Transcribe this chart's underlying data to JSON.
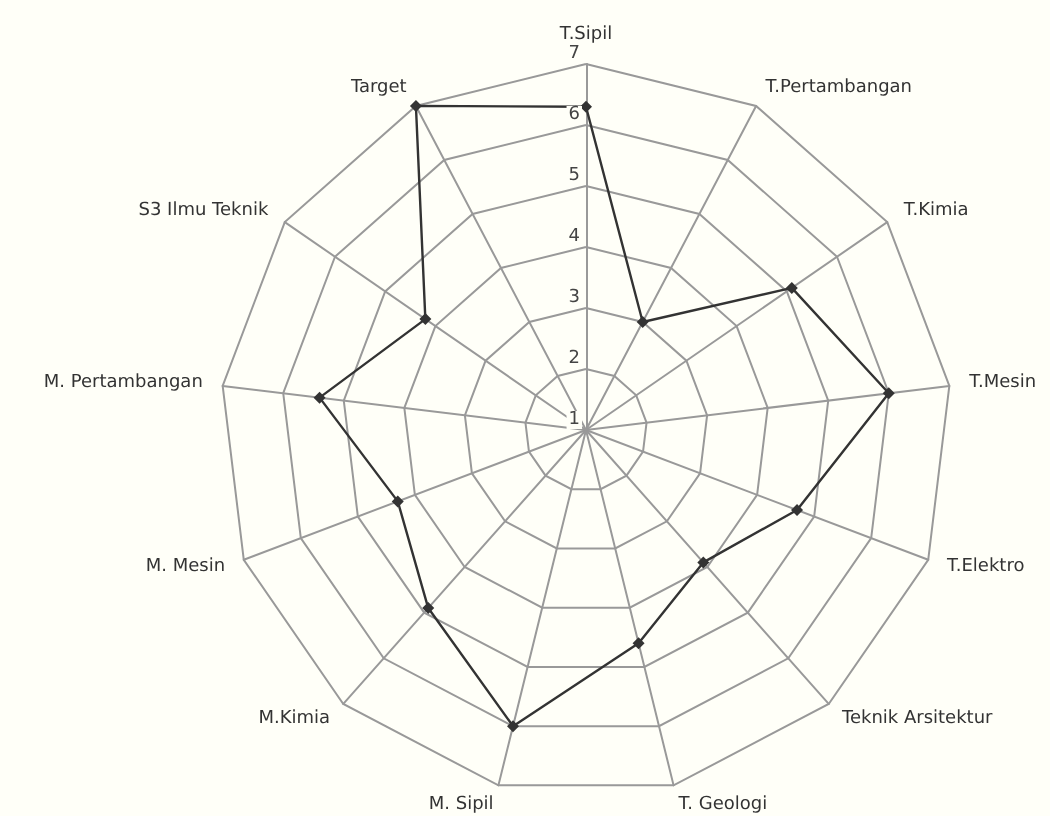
{
  "chart_data": {
    "type": "radar",
    "categories": [
      "T.Sipil",
      "T.Pertambangan",
      "T.Kimia",
      "T.Mesin",
      "T.Elektro",
      "Teknik Arsitektur",
      "T. Geologi",
      "M. Sipil",
      "M.Kimia",
      "M. Mesin",
      "M. Pertambangan",
      "S3 Ilmu Teknik",
      "Target"
    ],
    "series": [
      {
        "color": "#333333",
        "values": [
          6.3,
          3,
          5.1,
          6,
          4.7,
          3.9,
          4.6,
          6,
          4.9,
          4.3,
          5.4,
          4.2,
          7
        ]
      }
    ],
    "ylim": [
      1,
      7
    ],
    "yticks": [
      1,
      2,
      3,
      4,
      5,
      6,
      7
    ],
    "marker": "diamond",
    "line_style": "solid",
    "grid": true
  }
}
